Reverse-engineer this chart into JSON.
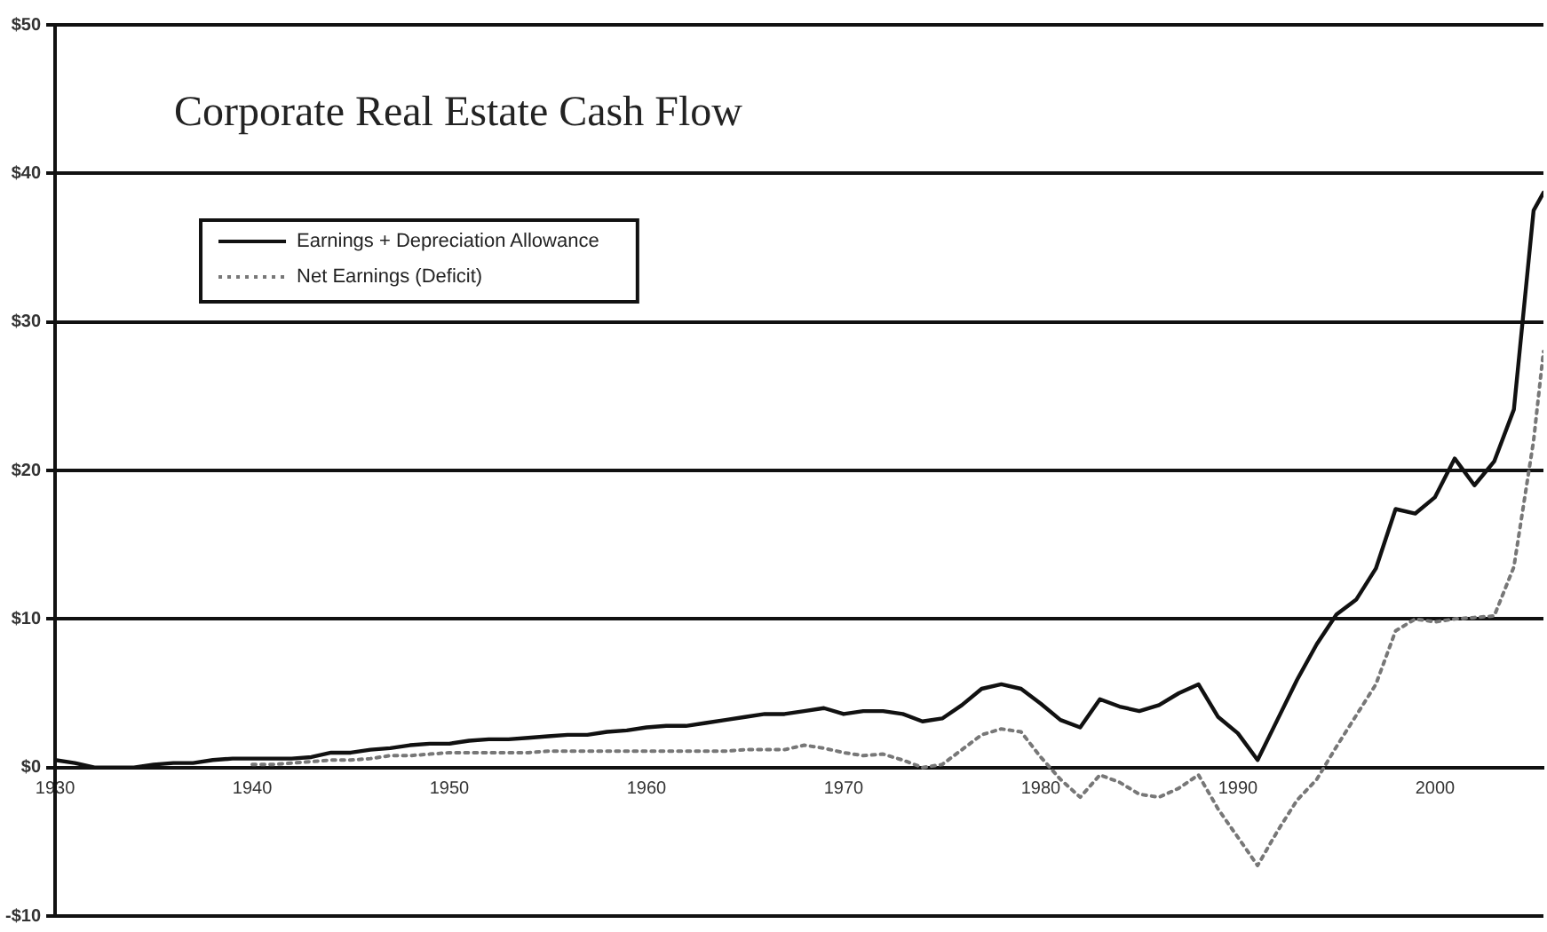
{
  "chart_data": {
    "type": "line",
    "title": "Corporate Real Estate Cash Flow",
    "x": [
      1930,
      1931,
      1932,
      1933,
      1934,
      1935,
      1936,
      1937,
      1938,
      1939,
      1940,
      1941,
      1942,
      1943,
      1944,
      1945,
      1946,
      1947,
      1948,
      1949,
      1950,
      1951,
      1952,
      1953,
      1954,
      1955,
      1956,
      1957,
      1958,
      1959,
      1960,
      1961,
      1962,
      1963,
      1964,
      1965,
      1966,
      1967,
      1968,
      1969,
      1970,
      1971,
      1972,
      1973,
      1974,
      1975,
      1976,
      1977,
      1978,
      1979,
      1980,
      1981,
      1982,
      1983,
      1984,
      1985,
      1986,
      1987,
      1988,
      1989,
      1990,
      1991,
      1992,
      1993,
      1994,
      1995,
      1996,
      1997,
      1998,
      1999,
      2000,
      2001,
      2002,
      2003,
      2004,
      2005,
      2005.5
    ],
    "series": [
      {
        "name": "Earnings + Depreciation Allowance",
        "color": "#111111",
        "line_style": "solid",
        "values": [
          0.5,
          0.3,
          0,
          0,
          0,
          0.2,
          0.3,
          0.3,
          0.5,
          0.6,
          0.6,
          0.6,
          0.6,
          0.7,
          1.0,
          1.0,
          1.2,
          1.3,
          1.5,
          1.6,
          1.6,
          1.8,
          1.9,
          1.9,
          2.0,
          2.1,
          2.2,
          2.2,
          2.4,
          2.5,
          2.7,
          2.8,
          2.8,
          3.0,
          3.2,
          3.4,
          3.6,
          3.6,
          3.8,
          4.0,
          3.6,
          3.8,
          3.8,
          3.6,
          3.1,
          3.3,
          4.2,
          5.3,
          5.6,
          5.3,
          4.3,
          3.2,
          2.7,
          4.6,
          4.1,
          3.8,
          4.2,
          5.0,
          5.6,
          3.4,
          2.3,
          0.5,
          3.2,
          5.9,
          8.3,
          10.3,
          11.3,
          13.4,
          17.4,
          17.1,
          18.2,
          20.8,
          19.0,
          20.6,
          24.1,
          37.5,
          38.7
        ]
      },
      {
        "name": "Net Earnings (Deficit)",
        "color": "#777777",
        "line_style": "dotted",
        "values": [
          null,
          null,
          null,
          null,
          null,
          null,
          null,
          null,
          null,
          null,
          0.2,
          0.2,
          0.3,
          0.4,
          0.5,
          0.5,
          0.6,
          0.8,
          0.8,
          0.9,
          1.0,
          1.0,
          1.0,
          1.0,
          1.0,
          1.1,
          1.1,
          1.1,
          1.1,
          1.1,
          1.1,
          1.1,
          1.1,
          1.1,
          1.1,
          1.2,
          1.2,
          1.2,
          1.5,
          1.3,
          1.0,
          0.8,
          0.9,
          0.5,
          0,
          0.2,
          1.2,
          2.2,
          2.6,
          2.4,
          0.7,
          -0.8,
          -2.0,
          -0.5,
          -1.0,
          -1.8,
          -2.0,
          -1.4,
          -0.5,
          -2.8,
          -4.7,
          -6.6,
          -4.3,
          -2.2,
          -0.8,
          1.4,
          3.5,
          5.6,
          9.2,
          10.0,
          9.8,
          10.0,
          10.1,
          10.2,
          13.5,
          22,
          28
        ]
      }
    ],
    "xlim": [
      1930,
      2005.5
    ],
    "xticks": [
      1930,
      1940,
      1950,
      1960,
      1970,
      1980,
      1990,
      2000
    ],
    "ylim": [
      -10,
      50
    ],
    "yticks": [
      {
        "value": -10,
        "label": "-$10"
      },
      {
        "value": 0,
        "label": "$0"
      },
      {
        "value": 10,
        "label": "$10"
      },
      {
        "value": 20,
        "label": "$20"
      },
      {
        "value": 30,
        "label": "$30"
      },
      {
        "value": 40,
        "label": "$40"
      },
      {
        "value": 50,
        "label": "$50"
      }
    ],
    "grid": "y",
    "legend": "top left",
    "marker": "none"
  }
}
